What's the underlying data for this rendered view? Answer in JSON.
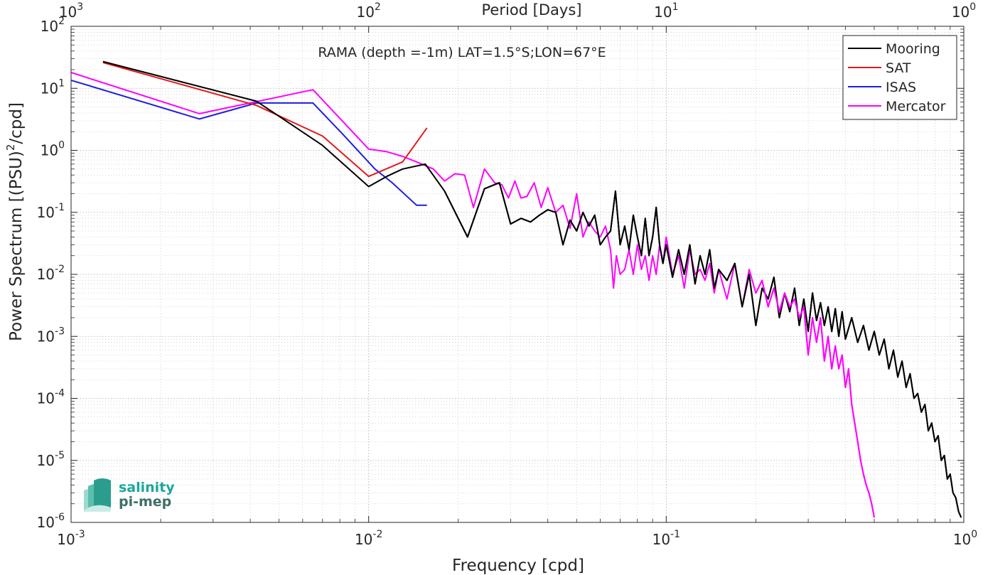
{
  "chart_data": {
    "type": "line",
    "title": "RAMA (depth =-1m) LAT=1.5°S;LON=67°E",
    "xlabel": "Frequency [cpd]",
    "ylabel": "Power Spectrum [(PSU)",
    "ylabel_sup": "2",
    "ylabel_tail": "/cpd]",
    "top_xlabel": "Period [Days]",
    "x_scale": "log",
    "y_scale": "log",
    "xlim": [
      0.001,
      1
    ],
    "ylim": [
      1e-06,
      100
    ],
    "grid": true,
    "legend_position": "top-right",
    "x_ticks": [
      {
        "value": 0.001,
        "base": "10",
        "exp": "-3"
      },
      {
        "value": 0.01,
        "base": "10",
        "exp": "-2"
      },
      {
        "value": 0.1,
        "base": "10",
        "exp": "-1"
      },
      {
        "value": 1,
        "base": "10",
        "exp": "0"
      }
    ],
    "y_ticks": [
      {
        "value": 100,
        "base": "10",
        "exp": "2"
      },
      {
        "value": 10,
        "base": "10",
        "exp": "1"
      },
      {
        "value": 1,
        "base": "10",
        "exp": "0"
      },
      {
        "value": 0.1,
        "base": "10",
        "exp": "-1"
      },
      {
        "value": 0.01,
        "base": "10",
        "exp": "-2"
      },
      {
        "value": 0.001,
        "base": "10",
        "exp": "-3"
      },
      {
        "value": 0.0001,
        "base": "10",
        "exp": "-4"
      },
      {
        "value": 1e-05,
        "base": "10",
        "exp": "-5"
      },
      {
        "value": 1e-06,
        "base": "10",
        "exp": "-6"
      }
    ],
    "top_ticks": [
      {
        "value": 0.001,
        "base": "10",
        "exp": "3"
      },
      {
        "value": 0.01,
        "base": "10",
        "exp": "2"
      },
      {
        "value": 0.1,
        "base": "10",
        "exp": "1"
      },
      {
        "value": 1,
        "base": "10",
        "exp": "0"
      }
    ],
    "series": [
      {
        "name": "Mooring",
        "color": "#000000",
        "x": [
          0.00128,
          0.0042,
          0.007,
          0.01,
          0.0115,
          0.013,
          0.0155,
          0.018,
          0.0215,
          0.0245,
          0.0275,
          0.03,
          0.0325,
          0.035,
          0.0375,
          0.04,
          0.0425,
          0.045,
          0.0475,
          0.05,
          0.0525,
          0.055,
          0.0575,
          0.06,
          0.0625,
          0.065,
          0.0675,
          0.07,
          0.0725,
          0.075,
          0.0775,
          0.08,
          0.0825,
          0.085,
          0.0875,
          0.09,
          0.0925,
          0.095,
          0.0975,
          0.1,
          0.105,
          0.11,
          0.115,
          0.12,
          0.125,
          0.13,
          0.135,
          0.14,
          0.145,
          0.15,
          0.16,
          0.17,
          0.18,
          0.19,
          0.2,
          0.21,
          0.22,
          0.23,
          0.24,
          0.25,
          0.26,
          0.27,
          0.28,
          0.29,
          0.3,
          0.31,
          0.32,
          0.33,
          0.34,
          0.35,
          0.36,
          0.37,
          0.38,
          0.39,
          0.4,
          0.42,
          0.44,
          0.46,
          0.48,
          0.5,
          0.52,
          0.54,
          0.56,
          0.58,
          0.6,
          0.62,
          0.64,
          0.66,
          0.68,
          0.7,
          0.72,
          0.74,
          0.76,
          0.78,
          0.8,
          0.82,
          0.84,
          0.86,
          0.88,
          0.9,
          0.92,
          0.94,
          0.96,
          0.98
        ],
        "values": [
          27,
          6.2,
          1.2,
          0.26,
          0.38,
          0.5,
          0.6,
          0.22,
          0.04,
          0.24,
          0.3,
          0.065,
          0.08,
          0.07,
          0.09,
          0.11,
          0.1,
          0.03,
          0.075,
          0.05,
          0.1,
          0.06,
          0.09,
          0.03,
          0.04,
          0.05,
          0.22,
          0.03,
          0.06,
          0.025,
          0.09,
          0.04,
          0.02,
          0.08,
          0.02,
          0.04,
          0.12,
          0.03,
          0.015,
          0.03,
          0.009,
          0.025,
          0.01,
          0.03,
          0.007,
          0.02,
          0.01,
          0.025,
          0.006,
          0.012,
          0.008,
          0.015,
          0.003,
          0.01,
          0.0015,
          0.006,
          0.004,
          0.009,
          0.002,
          0.005,
          0.0025,
          0.006,
          0.0015,
          0.004,
          0.0012,
          0.005,
          0.0018,
          0.0035,
          0.0015,
          0.003,
          0.0012,
          0.0028,
          0.001,
          0.0025,
          0.0009,
          0.002,
          0.0008,
          0.0015,
          0.0006,
          0.0012,
          0.0005,
          0.0009,
          0.0003,
          0.0006,
          0.00022,
          0.0004,
          0.00015,
          0.00025,
          0.0001,
          0.00012,
          6e-05,
          8e-05,
          3e-05,
          4e-05,
          2e-05,
          2.5e-05,
          1e-05,
          1.2e-05,
          5e-06,
          6e-06,
          3e-06,
          2.5e-06,
          1.5e-06,
          1.2e-06
        ]
      },
      {
        "name": "SAT",
        "color": "#e31a1c",
        "x": [
          0.00128,
          0.0042,
          0.007,
          0.01,
          0.013,
          0.0157
        ],
        "values": [
          26,
          5.3,
          1.7,
          0.38,
          0.65,
          2.3
        ]
      },
      {
        "name": "ISAS",
        "color": "#1f1fe0",
        "x": [
          0.001,
          0.0027,
          0.0042,
          0.0065,
          0.0082,
          0.0105,
          0.012,
          0.0145,
          0.0157
        ],
        "values": [
          13.5,
          3.2,
          5.8,
          5.8,
          1.8,
          0.5,
          0.3,
          0.13,
          0.13
        ]
      },
      {
        "name": "Mercator",
        "color": "#ff00ff",
        "x": [
          0.001,
          0.0027,
          0.0065,
          0.01,
          0.0115,
          0.013,
          0.0145,
          0.0165,
          0.018,
          0.0195,
          0.021,
          0.0225,
          0.0245,
          0.0265,
          0.028,
          0.0295,
          0.031,
          0.0325,
          0.034,
          0.036,
          0.038,
          0.04,
          0.0425,
          0.045,
          0.0475,
          0.05,
          0.0525,
          0.055,
          0.0575,
          0.06,
          0.0625,
          0.065,
          0.0665,
          0.068,
          0.07,
          0.0725,
          0.075,
          0.0775,
          0.08,
          0.0825,
          0.085,
          0.0875,
          0.09,
          0.0925,
          0.095,
          0.0975,
          0.1,
          0.105,
          0.11,
          0.115,
          0.12,
          0.125,
          0.13,
          0.135,
          0.14,
          0.145,
          0.15,
          0.16,
          0.17,
          0.18,
          0.19,
          0.2,
          0.21,
          0.22,
          0.23,
          0.24,
          0.25,
          0.26,
          0.27,
          0.28,
          0.29,
          0.3,
          0.31,
          0.32,
          0.33,
          0.34,
          0.35,
          0.36,
          0.37,
          0.38,
          0.39,
          0.4,
          0.41,
          0.42,
          0.43,
          0.44,
          0.45,
          0.46,
          0.47,
          0.48,
          0.49,
          0.5
        ],
        "values": [
          18,
          3.9,
          9.5,
          1.05,
          0.95,
          0.8,
          0.65,
          0.5,
          0.32,
          0.42,
          0.4,
          0.12,
          0.5,
          0.3,
          0.28,
          0.17,
          0.32,
          0.17,
          0.18,
          0.3,
          0.12,
          0.25,
          0.1,
          0.13,
          0.055,
          0.2,
          0.04,
          0.07,
          0.05,
          0.04,
          0.06,
          0.025,
          0.006,
          0.02,
          0.01,
          0.012,
          0.025,
          0.01,
          0.03,
          0.012,
          0.02,
          0.008,
          0.02,
          0.01,
          0.03,
          0.015,
          0.04,
          0.01,
          0.02,
          0.006,
          0.025,
          0.01,
          0.012,
          0.008,
          0.015,
          0.005,
          0.012,
          0.004,
          0.015,
          0.003,
          0.012,
          0.005,
          0.008,
          0.003,
          0.006,
          0.0025,
          0.005,
          0.003,
          0.004,
          0.002,
          0.003,
          0.0005,
          0.002,
          0.0008,
          0.002,
          0.0004,
          0.001,
          0.0003,
          0.0007,
          0.0003,
          0.0005,
          0.00015,
          0.0003,
          8e-05,
          4e-05,
          2e-05,
          1e-05,
          6e-06,
          4e-06,
          3e-06,
          2e-06,
          1.2e-06
        ]
      }
    ]
  },
  "logo": {
    "line1": "salinity",
    "line2": "pi-mep",
    "color1": "#1aa89a",
    "color2": "#3f6f68"
  }
}
